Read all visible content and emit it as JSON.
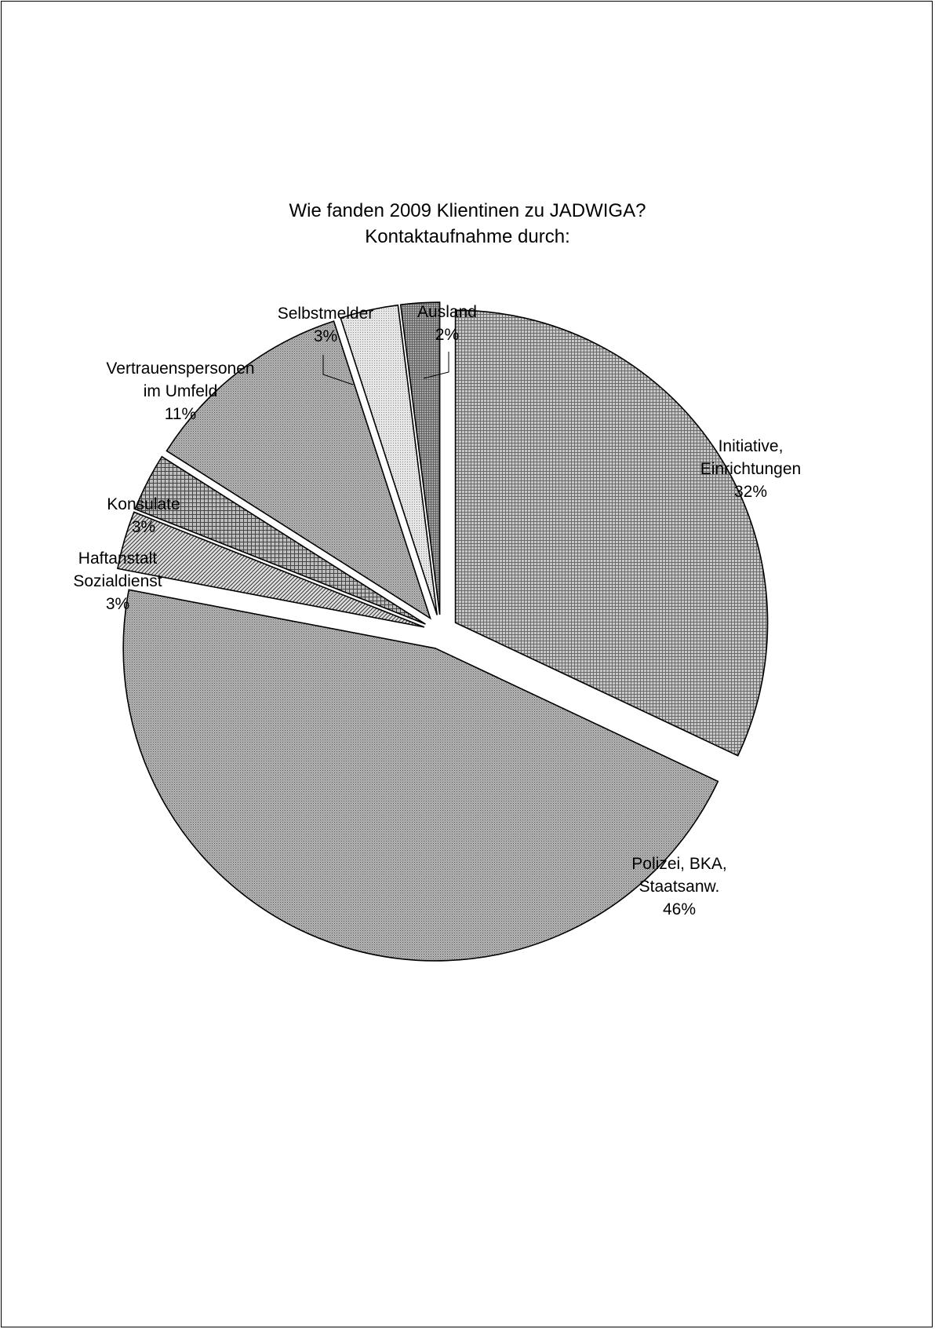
{
  "chart_data": {
    "type": "pie",
    "title_line1": "Wie fanden 2009 Klientinen zu JADWIGA?",
    "title_line2": "Kontaktaufnahme durch:",
    "slices": [
      {
        "label": [
          "Initiative,",
          "Einrichtungen"
        ],
        "percent_label": "32%",
        "value": 32,
        "pattern": "grid-fine",
        "exploded": true
      },
      {
        "label": [
          "Polizei, BKA,",
          "Staatsanw."
        ],
        "percent_label": "46%",
        "value": 46,
        "pattern": "dots-dense",
        "exploded": true
      },
      {
        "label": [
          "Haftanstalt",
          "Sozialdienst"
        ],
        "percent_label": "3%",
        "value": 3,
        "pattern": "diagonal",
        "exploded": true
      },
      {
        "label": [
          "Konsulate"
        ],
        "percent_label": "3%",
        "value": 3,
        "pattern": "grid-coarse",
        "exploded": true
      },
      {
        "label": [
          "Vertrauenspersonen",
          "im Umfeld"
        ],
        "percent_label": "11%",
        "value": 11,
        "pattern": "dots-dense",
        "exploded": true
      },
      {
        "label": [
          "Selbstmelder"
        ],
        "percent_label": "3%",
        "value": 3,
        "pattern": "dots-light",
        "exploded": true
      },
      {
        "label": [
          "Ausland"
        ],
        "percent_label": "2%",
        "value": 2,
        "pattern": "grid-small",
        "exploded": true
      }
    ],
    "start_angle_deg": 0,
    "direction": "clockwise",
    "legend": "none"
  }
}
